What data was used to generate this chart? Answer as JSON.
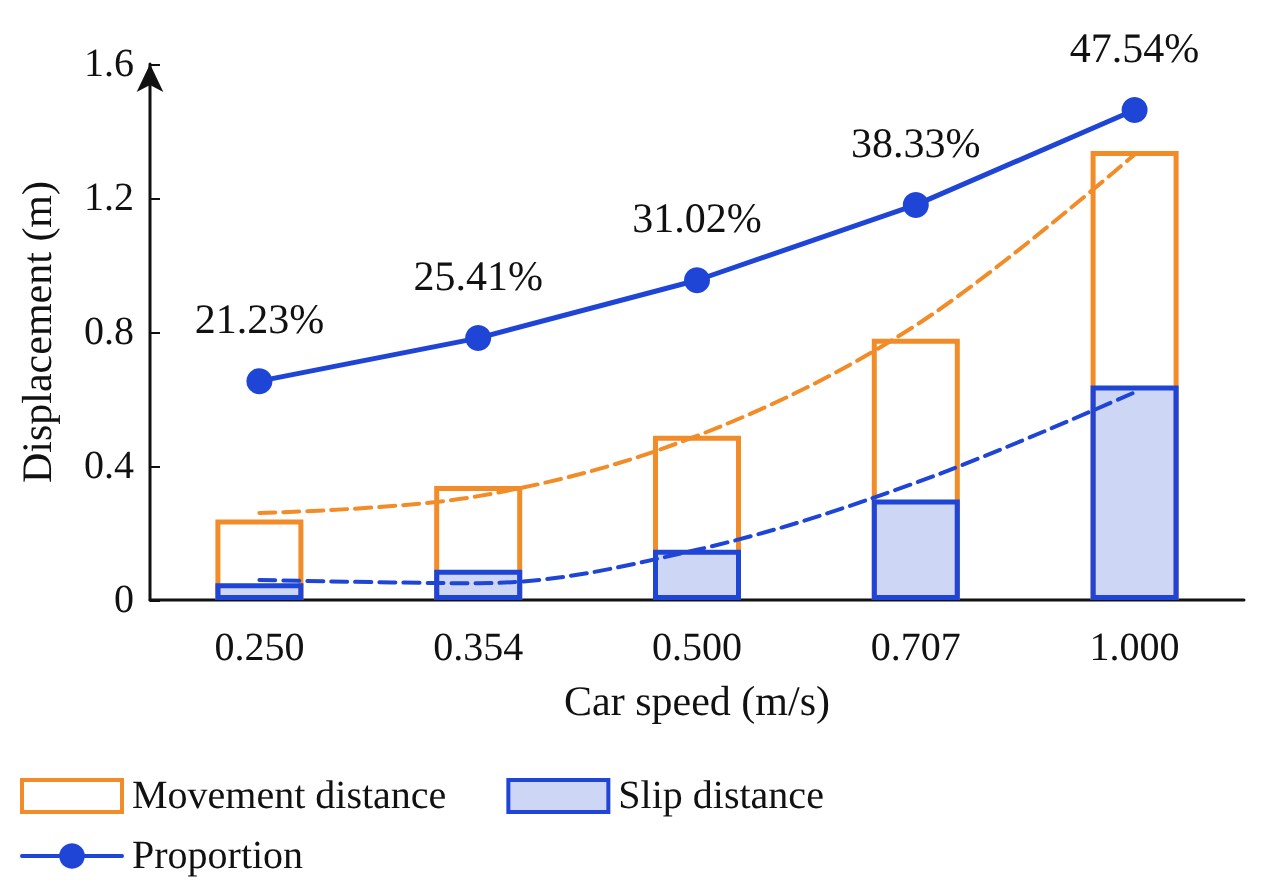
{
  "chart_data": {
    "type": "bar",
    "xlabel": "Car speed (m/s)",
    "ylabel": "Displacement (m)",
    "categories": [
      "0.250",
      "0.354",
      "0.500",
      "0.707",
      "1.000"
    ],
    "ylim": [
      0,
      1.6
    ],
    "yticks": [
      0,
      0.4,
      0.8,
      1.2,
      1.6
    ],
    "y2lim": [
      0,
      52
    ],
    "grid": false,
    "legend": "bottom",
    "series": [
      {
        "name": "Movement distance",
        "type": "bar",
        "color": "#f28c28",
        "values": [
          0.24,
          0.34,
          0.49,
          0.78,
          1.34
        ]
      },
      {
        "name": "Slip distance",
        "type": "bar",
        "color": "#1f45d6",
        "values": [
          0.05,
          0.09,
          0.15,
          0.3,
          0.64
        ]
      },
      {
        "type": "line",
        "color": "#f28c28",
        "line_style": "dashed",
        "marker": "none",
        "values": [
          0.26,
          0.31,
          0.49,
          0.82,
          1.33
        ]
      },
      {
        "type": "line",
        "color": "#1f45d6",
        "line_style": "dashed",
        "marker": "none",
        "values": [
          0.06,
          0.05,
          0.15,
          0.35,
          0.62
        ]
      },
      {
        "name": "Proportion",
        "type": "line",
        "axis": "y2",
        "color": "#1f45d6",
        "marker": "circle",
        "line_style": "solid",
        "values": [
          21.23,
          25.41,
          31.02,
          38.33,
          47.54
        ],
        "value_labels": [
          "21.23%",
          "25.41%",
          "31.02%",
          "38.33%",
          "47.54%"
        ]
      }
    ]
  }
}
